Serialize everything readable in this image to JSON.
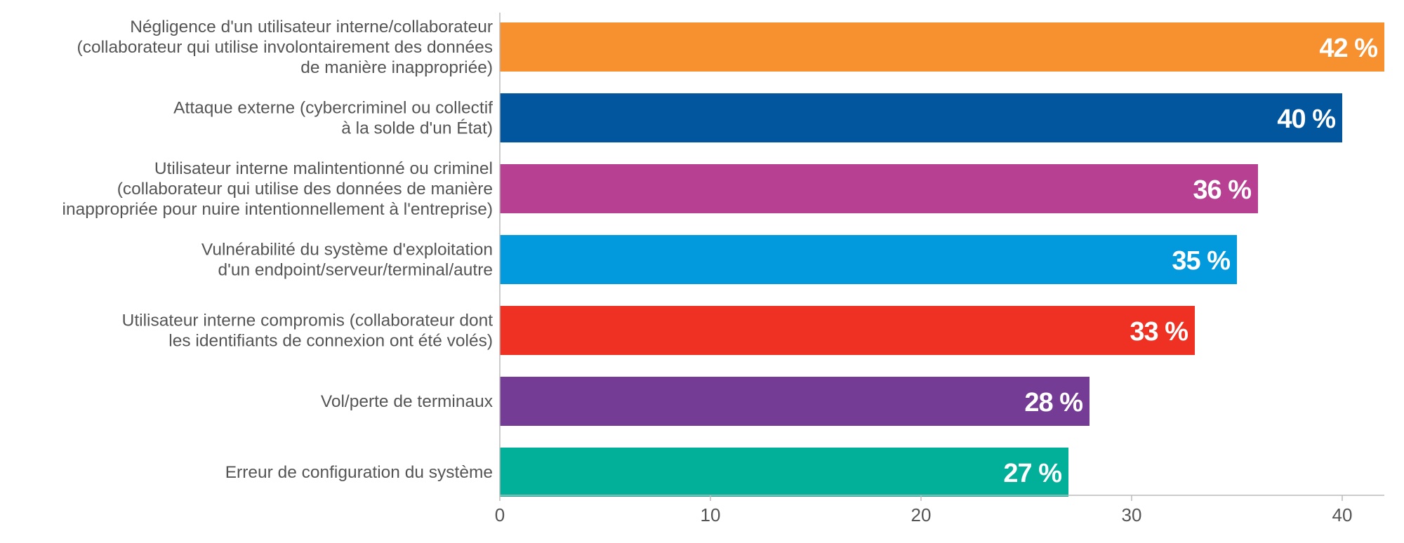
{
  "chart_data": {
    "type": "bar",
    "orientation": "horizontal",
    "categories": [
      [
        "Négligence d'un utilisateur interne/collaborateur",
        "(collaborateur qui utilise involontairement des données",
        "de manière inappropriée)"
      ],
      [
        "Attaque externe (cybercriminel ou collectif",
        "à la solde d'un État)"
      ],
      [
        "Utilisateur interne malintentionné ou criminel",
        "(collaborateur qui utilise des données de manière",
        "inappropriée pour nuire intentionnellement à l'entreprise)"
      ],
      [
        "Vulnérabilité du système d'exploitation",
        "d'un endpoint/serveur/terminal/autre"
      ],
      [
        "Utilisateur interne compromis (collaborateur dont",
        "les identifiants de connexion ont été volés)"
      ],
      [
        "Vol/perte de terminaux"
      ],
      [
        "Erreur de configuration du système"
      ]
    ],
    "values": [
      42,
      40,
      36,
      35,
      33,
      28,
      27
    ],
    "value_labels": [
      "42 %",
      "40 %",
      "36 %",
      "35 %",
      "33 %",
      "28 %",
      "27 %"
    ],
    "colors": [
      "#F7902F",
      "#02569E",
      "#B84093",
      "#029ADC",
      "#EE3123",
      "#743C94",
      "#02AF98"
    ],
    "xlim": [
      0,
      42
    ],
    "xticks": [
      0,
      10,
      20,
      30,
      40
    ],
    "title": "",
    "xlabel": "",
    "ylabel": "",
    "grid": false,
    "legend": "none"
  }
}
